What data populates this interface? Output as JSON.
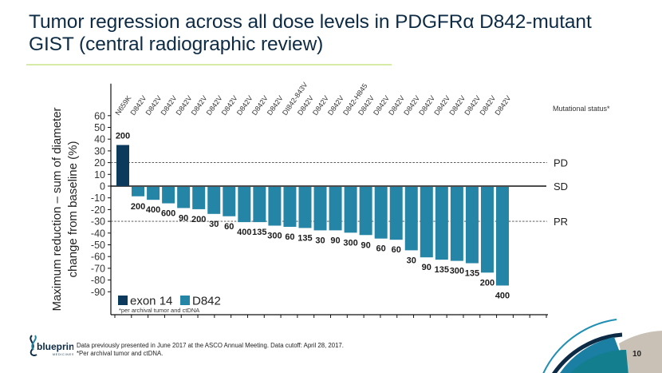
{
  "slide": {
    "title": "Tumor regression across all dose levels in PDGFRα D842-mutant GIST (central radiographic review)",
    "footnote_line1": "Data previously presented in June 2017 at the ASCO Annual Meeting. Data cutoff: April 28, 2017.",
    "footnote_line2": "*Per archival tumor and ctDNA.",
    "page_number": "10",
    "logo_text": "blueprint",
    "logo_subtext": "MEDICINES",
    "colors": {
      "title": "#0d2b45",
      "accent_rule": "#d6eba6",
      "exon14": "#0b3a5c",
      "d842": "#2485a6"
    }
  },
  "chart_data": {
    "type": "bar",
    "title": "",
    "ylabel": "Maximum reduction – sum of diameter change from baseline (%)",
    "xlabel": "",
    "ylim": [
      -90,
      60
    ],
    "yticks": [
      60,
      50,
      40,
      30,
      20,
      10,
      0,
      -10,
      -20,
      -30,
      -40,
      -50,
      -60,
      -70,
      -80,
      -90
    ],
    "mutational_status_label": "Mutational status*",
    "reference_lines": [
      {
        "label": "PD",
        "value": 20,
        "style": "dashed"
      },
      {
        "label": "SD",
        "value": 0,
        "style": "solid"
      },
      {
        "label": "PR",
        "value": -30,
        "style": "dashed"
      }
    ],
    "legend": [
      {
        "name": "exon 14",
        "color": "#0b3a5c"
      },
      {
        "name": "D842",
        "color": "#2485a6"
      }
    ],
    "legend_note": "*per archival tumor and ctDNA",
    "legend_position": "bottom-left",
    "categories": [
      "N659K",
      "D842V",
      "D842V",
      "D842V",
      "D842V",
      "D842V",
      "D842V",
      "D842V",
      "D842V",
      "D842V",
      "D842V",
      "DI842-843V",
      "D842V",
      "D842V",
      "D842V",
      "D842-H845",
      "D842V",
      "D842V",
      "D842V",
      "D842V",
      "D842V",
      "D842V",
      "D842V",
      "D842V",
      "D842V",
      "D842V"
    ],
    "groups": [
      "exon 14",
      "D842",
      "D842",
      "D842",
      "D842",
      "D842",
      "D842",
      "D842",
      "D842",
      "D842",
      "D842",
      "D842",
      "D842",
      "D842",
      "D842",
      "D842",
      "D842",
      "D842",
      "D842",
      "D842",
      "D842",
      "D842",
      "D842",
      "D842",
      "D842",
      "D842"
    ],
    "values": [
      35,
      -8,
      -11,
      -14,
      -18,
      -19,
      -23,
      -25,
      -30,
      -30,
      -33,
      -34,
      -35,
      -37,
      -37,
      -39,
      -41,
      -44,
      -45,
      -54,
      -60,
      -62,
      -63,
      -65,
      -73,
      -84
    ],
    "dose_labels": [
      "200",
      "200",
      "400",
      "600",
      "90",
      "200",
      "30",
      "60",
      "400",
      "135",
      "300",
      "60",
      "135",
      "30",
      "90",
      "300",
      "90",
      "60",
      "60",
      "30",
      "90",
      "135",
      "300",
      "135",
      "200",
      "400"
    ]
  }
}
